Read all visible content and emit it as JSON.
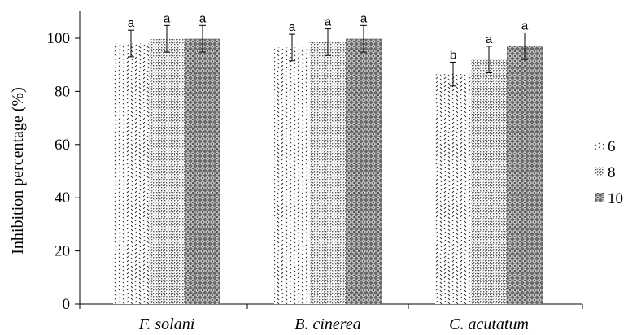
{
  "chart_data": {
    "type": "bar",
    "ylabel": "Inhibition percentage (%)",
    "ylim": [
      0,
      100
    ],
    "yticks": [
      0,
      20,
      40,
      60,
      80,
      100
    ],
    "categories": [
      "F. solani",
      "B. cinerea",
      "C. acutatum"
    ],
    "series": [
      {
        "name": "6",
        "values": [
          98,
          96.5,
          86.5
        ],
        "errors": [
          5,
          5,
          4.5
        ],
        "significance": [
          "a",
          "a",
          "b"
        ]
      },
      {
        "name": "8",
        "values": [
          99.8,
          98.5,
          92
        ],
        "errors": [
          5,
          5,
          5
        ],
        "significance": [
          "a",
          "a",
          "a"
        ]
      },
      {
        "name": "10",
        "values": [
          99.8,
          99.8,
          97
        ],
        "errors": [
          5,
          5,
          5
        ],
        "significance": [
          "a",
          "a",
          "a"
        ]
      }
    ],
    "legend_position": "right",
    "grid": false
  }
}
